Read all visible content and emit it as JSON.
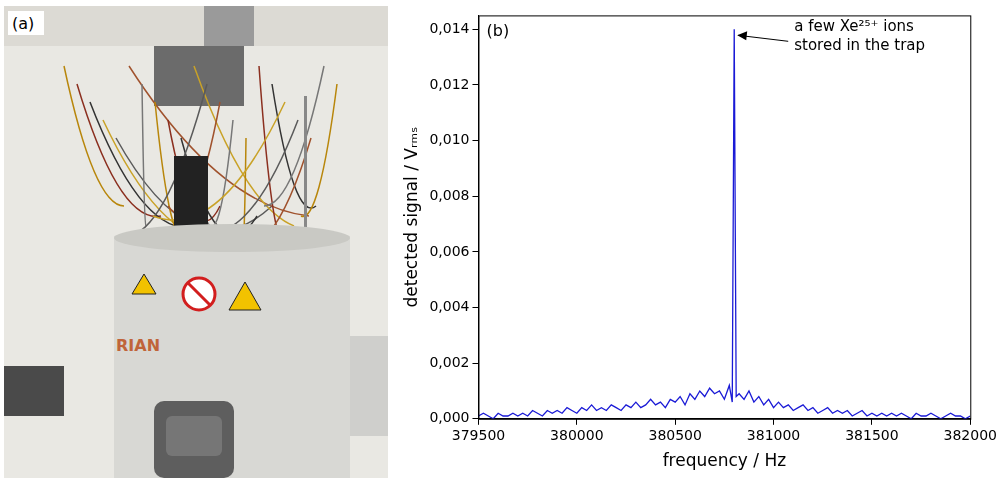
{
  "panel_a": {
    "label": "(a)",
    "printed_text": "RIAN"
  },
  "chart_data": {
    "type": "line",
    "panel_label": "(b)",
    "x_label": "frequency / Hz",
    "y_label": "detected signal / Vᵣₘₛ",
    "color": "#1a1ad6",
    "grid": false,
    "xlim": [
      379500,
      382000
    ],
    "xticks": [
      379500,
      380000,
      380500,
      381000,
      381500,
      382000
    ],
    "ylim": [
      0,
      0.0145
    ],
    "yticks": [
      {
        "value": 0,
        "label": "0,000"
      },
      {
        "value": 0.002,
        "label": "0,002"
      },
      {
        "value": 0.004,
        "label": "0,004"
      },
      {
        "value": 0.006,
        "label": "0,006"
      },
      {
        "value": 0.008,
        "label": "0,008"
      },
      {
        "value": 0.01,
        "label": "0,010"
      },
      {
        "value": 0.012,
        "label": "0,012"
      },
      {
        "value": 0.014,
        "label": "0,014"
      }
    ],
    "annotations": [
      {
        "text": [
          "a few Xe²⁵⁺ ions",
          "stored in the trap"
        ],
        "x": 380800,
        "y": 0.014
      }
    ],
    "x": [
      379500,
      379525,
      379550,
      379575,
      379600,
      379625,
      379650,
      379675,
      379700,
      379725,
      379750,
      379775,
      379800,
      379825,
      379850,
      379875,
      379900,
      379925,
      379950,
      379975,
      380000,
      380025,
      380050,
      380075,
      380100,
      380125,
      380150,
      380175,
      380200,
      380225,
      380250,
      380275,
      380300,
      380325,
      380350,
      380375,
      380400,
      380425,
      380450,
      380475,
      380500,
      380525,
      380550,
      380575,
      380600,
      380625,
      380650,
      380675,
      380700,
      380725,
      380750,
      380775,
      380790,
      380800,
      380810,
      380825,
      380850,
      380875,
      380900,
      380925,
      380950,
      380975,
      381000,
      381025,
      381050,
      381075,
      381100,
      381125,
      381150,
      381175,
      381200,
      381225,
      381250,
      381275,
      381300,
      381325,
      381350,
      381375,
      381400,
      381425,
      381450,
      381475,
      381500,
      381525,
      381550,
      381575,
      381600,
      381625,
      381650,
      381675,
      381700,
      381725,
      381750,
      381775,
      381800,
      381825,
      381850,
      381875,
      381900,
      381925,
      381950,
      381975,
      382000
    ],
    "values": [
      0.0001,
      0.0002,
      0.0001,
      0.0,
      0.0002,
      0.0001,
      0.0001,
      0.0002,
      0.0001,
      0.0002,
      0.0001,
      0.0003,
      0.0002,
      0.0001,
      0.0003,
      0.0002,
      0.0003,
      0.0002,
      0.0004,
      0.0003,
      0.0002,
      0.0004,
      0.0003,
      0.0005,
      0.0003,
      0.0004,
      0.0003,
      0.0005,
      0.0004,
      0.0003,
      0.0005,
      0.0004,
      0.0006,
      0.0004,
      0.0005,
      0.0007,
      0.0005,
      0.0006,
      0.0004,
      0.0007,
      0.0006,
      0.0008,
      0.0005,
      0.0009,
      0.0007,
      0.001,
      0.0008,
      0.0011,
      0.0009,
      0.001,
      0.0007,
      0.0012,
      0.0006,
      0.014,
      0.0008,
      0.0009,
      0.0007,
      0.001,
      0.0006,
      0.0008,
      0.0005,
      0.0007,
      0.0004,
      0.0006,
      0.0004,
      0.0005,
      0.0003,
      0.0004,
      0.0005,
      0.0003,
      0.0004,
      0.0002,
      0.0003,
      0.0004,
      0.0002,
      0.0003,
      0.0002,
      0.0003,
      0.0001,
      0.0002,
      0.0003,
      0.0001,
      0.0002,
      0.0001,
      0.0002,
      0.0001,
      0.0002,
      0.0001,
      0.0002,
      0.0001,
      0.0,
      0.0002,
      0.0001,
      0.0001,
      0.0002,
      0.0001,
      0.0,
      0.0001,
      0.0002,
      0.0001,
      0.0001,
      0.0,
      0.0001
    ]
  }
}
